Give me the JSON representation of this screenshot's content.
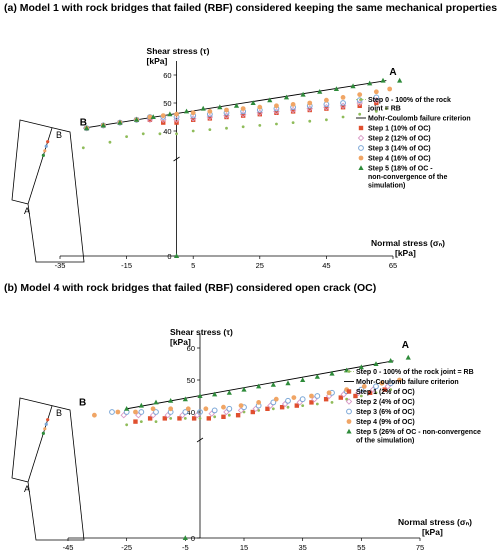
{
  "panels": [
    {
      "title": "(a) Model 1 with rock bridges that failed (RBF) considered keeping the same mechanical properties",
      "chart_data": {
        "type": "scatter",
        "xlabel_line1": "Normal stress (σₙ)",
        "xlabel_line2": "[kPa]",
        "ylabel_line1": "Shear stress (τ)",
        "ylabel_line2": "[kPa]",
        "x_ticks": [
          -35,
          -15,
          5,
          25,
          45,
          65
        ],
        "y_ticks": [
          0,
          40,
          50,
          60
        ],
        "xlim": [
          -35,
          70
        ],
        "point_labels": [
          {
            "text": "A",
            "x": 65,
            "y": 60
          },
          {
            "text": "B",
            "x": -28,
            "y": 42
          }
        ],
        "criterion": {
          "name": "Mohr-Coulomb failure criterion",
          "x": [
            -28,
            63
          ],
          "y": [
            41,
            58
          ]
        },
        "series": [
          {
            "name": "Step 0 - 100% of the rock joint = RB",
            "marker": "small-circle",
            "color": "#8fbc5a",
            "x": [
              -28,
              -20,
              -15,
              -10,
              -5,
              0,
              5,
              10,
              15,
              20,
              25,
              30,
              35,
              40,
              45,
              50,
              55,
              60,
              63
            ],
            "y": [
              34,
              36,
              38,
              39,
              39,
              39,
              40,
              40.5,
              41,
              41.5,
              42,
              42.5,
              43,
              43.5,
              44,
              45,
              46,
              47,
              48
            ]
          },
          {
            "name": "Step 1 (10% of OC)",
            "marker": "square",
            "color": "#e04f2f",
            "x": [
              -27,
              -22,
              -17,
              -12,
              -8,
              -4,
              0,
              5,
              10,
              15,
              20,
              25,
              30,
              35,
              40,
              45,
              50,
              55,
              60
            ],
            "y": [
              41,
              42,
              43,
              44,
              44,
              43,
              43,
              44,
              44.5,
              45,
              45.5,
              46,
              46.5,
              47,
              47.5,
              48,
              48.5,
              49,
              50
            ]
          },
          {
            "name": "Step 2 (12% of OC)",
            "marker": "diamond",
            "color": "#d99ac6",
            "x": [
              -27,
              -22,
              -17,
              -12,
              -8,
              -4,
              0,
              5,
              10,
              15,
              20,
              25,
              30,
              35,
              40,
              45,
              50,
              55,
              60
            ],
            "y": [
              41,
              42,
              43,
              44,
              44,
              44,
              44,
              44.5,
              45,
              45.5,
              46,
              46.5,
              47,
              47.5,
              48,
              48.5,
              49,
              50,
              51
            ]
          },
          {
            "name": "Step 3 (14% of OC)",
            "marker": "open-circle",
            "color": "#7aa6d6",
            "x": [
              -27,
              -22,
              -17,
              -12,
              -8,
              -4,
              0,
              5,
              10,
              15,
              20,
              25,
              30,
              35,
              40,
              45,
              50,
              55,
              60
            ],
            "y": [
              41,
              42,
              43,
              44,
              45,
              45,
              45,
              45.5,
              46,
              46.5,
              47,
              47.5,
              48,
              48.5,
              49,
              49.5,
              50,
              51,
              52
            ]
          },
          {
            "name": "Step 4 (16% of OC)",
            "marker": "filled-circle",
            "color": "#f0a565",
            "x": [
              -27,
              -22,
              -17,
              -12,
              -8,
              -4,
              0,
              5,
              10,
              15,
              20,
              25,
              30,
              35,
              40,
              45,
              50,
              55,
              60,
              64
            ],
            "y": [
              41,
              42,
              43,
              44,
              45,
              45.5,
              46,
              46.5,
              47,
              47.5,
              48,
              48.5,
              49,
              49.5,
              50,
              51,
              52,
              53,
              54,
              55
            ]
          },
          {
            "name": "Step 5 (18% of OC - non-convergence of the simulation)",
            "marker": "triangle",
            "color": "#2e8b3a",
            "x": [
              -27,
              -22,
              -17,
              -12,
              -7,
              -2,
              3,
              8,
              13,
              18,
              23,
              28,
              33,
              38,
              43,
              48,
              53,
              58,
              62,
              67
            ],
            "y": [
              41,
              42,
              43,
              44,
              45,
              46,
              47,
              48,
              48.5,
              49,
              50,
              51,
              52,
              53,
              54,
              55,
              56,
              57,
              58,
              58
            ],
            "extra": [
              {
                "x": 0,
                "y": 0
              }
            ]
          }
        ]
      },
      "legend": {
        "step0": [
          "Step 0 - 100% of the rock",
          "joint = RB"
        ],
        "criterion": [
          "Mohr-Coulomb failure criterion"
        ],
        "step1": [
          "Step 1 (10% of OC)"
        ],
        "step2": [
          "Step 2 (12% of OC)"
        ],
        "step3": [
          "Step 3 (14% of OC)"
        ],
        "step4": [
          "Step 4 (16% of OC)"
        ],
        "step5": [
          "Step 5 (18% of OC -",
          "non-convergence of the",
          "simulation)"
        ]
      },
      "sketch_labels": {
        "top": "B",
        "bottom": "A"
      }
    },
    {
      "title": "(b) Model 4 with rock bridges that failed (RBF) considered open crack (OC)",
      "chart_data": {
        "type": "scatter",
        "xlabel_line1": "Normal stress (σₙ)",
        "xlabel_line2": "[kPa]",
        "ylabel_line1": "Shear stress (τ)",
        "ylabel_line2": "[kPa]",
        "x_ticks": [
          -45,
          -25,
          -5,
          15,
          35,
          55,
          75
        ],
        "y_ticks": [
          0,
          40,
          50,
          60
        ],
        "xlim": [
          -45,
          78
        ],
        "point_labels": [
          {
            "text": "A",
            "x": 70,
            "y": 60
          },
          {
            "text": "B",
            "x": -40,
            "y": 42
          }
        ],
        "criterion": {
          "name": "Mohr-Coulomb failure criterion",
          "x": [
            -25,
            66
          ],
          "y": [
            41,
            56
          ]
        },
        "series": [
          {
            "name": "Step 0 - 100% of the rock joint = RB",
            "marker": "small-circle",
            "color": "#8fbc5a",
            "x": [
              -25,
              -20,
              -15,
              -10,
              -5,
              0,
              5,
              10,
              15,
              20,
              25,
              30,
              35,
              40,
              45,
              50,
              55,
              60,
              65
            ],
            "y": [
              36,
              37,
              37,
              38,
              38,
              38,
              38.5,
              39,
              40,
              40.5,
              41,
              41.5,
              42,
              42.5,
              43,
              44,
              45,
              46,
              47
            ]
          },
          {
            "name": "Step 1 (2% of OC)",
            "marker": "square",
            "color": "#e04f2f",
            "x": [
              -22,
              -17,
              -12,
              -7,
              -2,
              3,
              8,
              13,
              18,
              23,
              28,
              33,
              38,
              43,
              48,
              53,
              58,
              63
            ],
            "y": [
              37,
              38,
              38,
              38,
              38,
              38,
              38.5,
              39,
              40,
              41,
              41.5,
              42,
              43,
              44,
              44.5,
              45,
              46,
              47
            ]
          },
          {
            "name": "Step 2 (4% of OC)",
            "marker": "diamond",
            "color": "#d99ac6",
            "x": [
              -26,
              -21,
              -16,
              -11,
              -6,
              -1,
              4,
              9,
              14,
              19,
              24,
              29,
              34,
              39,
              44,
              49,
              54,
              59,
              64
            ],
            "y": [
              39,
              39,
              39,
              39,
              39,
              39,
              39.5,
              40,
              40.5,
              41,
              42,
              42.5,
              43,
              44,
              45,
              45.5,
              46,
              47,
              48
            ]
          },
          {
            "name": "Step 3 (6% of OC)",
            "marker": "open-circle",
            "color": "#7aa6d6",
            "x": [
              -30,
              -25,
              -20,
              -15,
              -10,
              -5,
              0,
              5,
              10,
              15,
              20,
              25,
              30,
              35,
              40,
              45,
              50,
              55,
              60,
              65
            ],
            "y": [
              40,
              40,
              40,
              40,
              40,
              40,
              40,
              40.5,
              41,
              41.5,
              42,
              43,
              43.5,
              44,
              45,
              46,
              46.5,
              47,
              48,
              49
            ]
          },
          {
            "name": "Step 4 (9% of OC)",
            "marker": "filled-circle",
            "color": "#f0a565",
            "x": [
              -36,
              -28,
              -22,
              -16,
              -10,
              -4,
              2,
              8,
              14,
              20,
              26,
              32,
              38,
              44,
              50,
              56,
              62,
              68
            ],
            "y": [
              39,
              40,
              40,
              41,
              41,
              41,
              41,
              41.5,
              42,
              43,
              44,
              44.5,
              45,
              46,
              47,
              48,
              49,
              50
            ]
          },
          {
            "name": "Step 5 (26% of OC - non-convergence of the simulation)",
            "marker": "triangle",
            "color": "#2e8b3a",
            "x": [
              -25,
              -20,
              -15,
              -10,
              -5,
              0,
              5,
              10,
              15,
              20,
              25,
              30,
              35,
              40,
              45,
              50,
              55,
              60,
              65,
              71
            ],
            "y": [
              41,
              42,
              43,
              43.5,
              44,
              45,
              45.5,
              46,
              47,
              48,
              48.5,
              49,
              50,
              51,
              52,
              53,
              54,
              55,
              56,
              57
            ],
            "extra": [
              {
                "x": -5,
                "y": 0
              }
            ]
          }
        ]
      },
      "legend": {
        "step0": [
          "Step 0 - 100% of the rock joint = RB"
        ],
        "criterion": [
          "Mohr-Coulomb failure criterion"
        ],
        "step1": [
          "Step 1 (2% of OC)"
        ],
        "step2": [
          "Step 2 (4% of OC)"
        ],
        "step3": [
          "Step 3 (6% of OC)"
        ],
        "step4": [
          "Step 4 (9% of OC)"
        ],
        "step5": [
          "Step 5 (26% of OC - non-convergence",
          "of the simulation)"
        ]
      },
      "sketch_labels": {
        "top": "B",
        "bottom": "A"
      }
    }
  ]
}
